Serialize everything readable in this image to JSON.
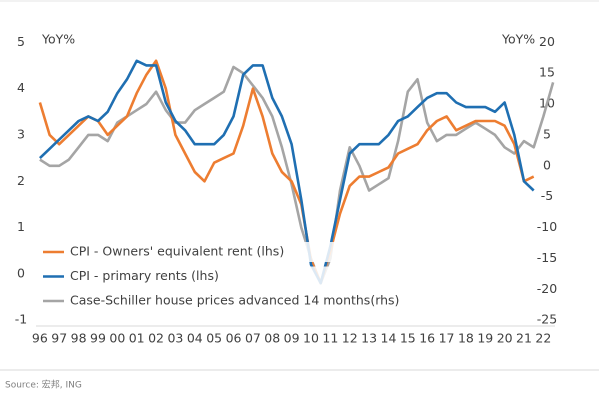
{
  "chart_data": {
    "type": "line",
    "y_axis_label": "YoY%",
    "y2_axis_label": "YoY%",
    "source": "Source: 宏邦, ING",
    "xlim": [
      1995.8,
      2022.6
    ],
    "xticks": [
      {
        "value": 1996,
        "label": "96"
      },
      {
        "value": 1997,
        "label": "97"
      },
      {
        "value": 1998,
        "label": "98"
      },
      {
        "value": 1999,
        "label": "99"
      },
      {
        "value": 2000,
        "label": "00"
      },
      {
        "value": 2001,
        "label": "01"
      },
      {
        "value": 2002,
        "label": "02"
      },
      {
        "value": 2003,
        "label": "03"
      },
      {
        "value": 2004,
        "label": "04"
      },
      {
        "value": 2005,
        "label": "05"
      },
      {
        "value": 2006,
        "label": "06"
      },
      {
        "value": 2007,
        "label": "07"
      },
      {
        "value": 2008,
        "label": "08"
      },
      {
        "value": 2009,
        "label": "09"
      },
      {
        "value": 2010,
        "label": "10"
      },
      {
        "value": 2011,
        "label": "11"
      },
      {
        "value": 2012,
        "label": "12"
      },
      {
        "value": 2013,
        "label": "13"
      },
      {
        "value": 2014,
        "label": "14"
      },
      {
        "value": 2015,
        "label": "15"
      },
      {
        "value": 2016,
        "label": "16"
      },
      {
        "value": 2017,
        "label": "17"
      },
      {
        "value": 2018,
        "label": "18"
      },
      {
        "value": 2019,
        "label": "19"
      },
      {
        "value": 2020,
        "label": "20"
      },
      {
        "value": 2021,
        "label": "21"
      },
      {
        "value": 2022,
        "label": "22"
      }
    ],
    "ylim": [
      -1.2,
      5.2
    ],
    "yticks": [
      -1,
      0,
      1,
      2,
      3,
      4,
      5
    ],
    "y2lim": [
      -26.5,
      21.5
    ],
    "y2ticks": [
      -25,
      -20,
      -15,
      -10,
      -5,
      0,
      5,
      10,
      15,
      20
    ],
    "series": [
      {
        "name": "CPI - Owners' equivalent rent (lhs)",
        "color": "#ed7d31",
        "x": [
          1996,
          1996.5,
          1997,
          1997.5,
          1998,
          1998.5,
          1999,
          1999.5,
          2000,
          2000.5,
          2001,
          2001.5,
          2002,
          2002.5,
          2003,
          2003.5,
          2004,
          2004.5,
          2005,
          2005.5,
          2006,
          2006.5,
          2007,
          2007.5,
          2008,
          2008.5,
          2009,
          2009.5,
          2010,
          2010.5,
          2011,
          2011.5,
          2012,
          2012.5,
          2013,
          2013.5,
          2014,
          2014.5,
          2015,
          2015.5,
          2016,
          2016.5,
          2017,
          2017.5,
          2018,
          2018.5,
          2019,
          2019.5,
          2020,
          2020.5,
          2021,
          2021.5
        ],
        "values": [
          3.7,
          3.0,
          2.8,
          3.0,
          3.2,
          3.4,
          3.3,
          3.0,
          3.2,
          3.4,
          3.9,
          4.3,
          4.6,
          4.0,
          3.0,
          2.6,
          2.2,
          2.0,
          2.4,
          2.5,
          2.6,
          3.2,
          4.0,
          3.4,
          2.6,
          2.2,
          2.0,
          1.5,
          0.3,
          -0.2,
          0.5,
          1.3,
          1.9,
          2.1,
          2.1,
          2.2,
          2.3,
          2.6,
          2.7,
          2.8,
          3.1,
          3.3,
          3.4,
          3.1,
          3.2,
          3.3,
          3.3,
          3.3,
          3.2,
          2.8,
          2.0,
          2.1
        ]
      },
      {
        "name": "CPI - primary rents (lhs)",
        "color": "#1f6fb2",
        "x": [
          1996,
          1996.5,
          1997,
          1997.5,
          1998,
          1998.5,
          1999,
          1999.5,
          2000,
          2000.5,
          2001,
          2001.5,
          2002,
          2002.5,
          2003,
          2003.5,
          2004,
          2004.5,
          2005,
          2005.5,
          2006,
          2006.5,
          2007,
          2007.5,
          2008,
          2008.5,
          2009,
          2009.5,
          2010,
          2010.5,
          2011,
          2011.5,
          2012,
          2012.5,
          2013,
          2013.5,
          2014,
          2014.5,
          2015,
          2015.5,
          2016,
          2016.5,
          2017,
          2017.5,
          2018,
          2018.5,
          2019,
          2019.5,
          2020,
          2020.5,
          2021,
          2021.5
        ],
        "values": [
          2.5,
          2.7,
          2.9,
          3.1,
          3.3,
          3.4,
          3.3,
          3.5,
          3.9,
          4.2,
          4.6,
          4.5,
          4.5,
          3.7,
          3.3,
          3.1,
          2.8,
          2.8,
          2.8,
          3.0,
          3.4,
          4.3,
          4.5,
          4.5,
          3.8,
          3.4,
          2.8,
          1.6,
          0.2,
          -0.2,
          0.6,
          1.6,
          2.6,
          2.8,
          2.8,
          2.8,
          3.0,
          3.3,
          3.4,
          3.6,
          3.8,
          3.9,
          3.9,
          3.7,
          3.6,
          3.6,
          3.6,
          3.5,
          3.7,
          3.0,
          2.0,
          1.8
        ]
      },
      {
        "name": "Case-Schiller house prices advanced 14 months(rhs)",
        "color": "#a5a5a5",
        "axis": "y2",
        "x": [
          1996,
          1996.5,
          1997,
          1997.5,
          1998,
          1998.5,
          1999,
          1999.5,
          2000,
          2000.5,
          2001,
          2001.5,
          2002,
          2002.5,
          2003,
          2003.5,
          2004,
          2004.5,
          2005,
          2005.5,
          2006,
          2006.5,
          2007,
          2007.5,
          2008,
          2008.5,
          2009,
          2009.5,
          2010,
          2010.5,
          2011,
          2011.5,
          2012,
          2012.5,
          2013,
          2013.5,
          2014,
          2014.5,
          2015,
          2015.5,
          2016,
          2016.5,
          2017,
          2017.5,
          2018,
          2018.5,
          2019,
          2019.5,
          2020,
          2020.5,
          2021,
          2021.5,
          2022,
          2022.5
        ],
        "values": [
          1,
          0,
          0,
          1,
          3,
          5,
          5,
          4,
          7,
          8,
          9,
          10,
          12,
          9,
          7,
          7,
          9,
          10,
          11,
          12,
          16,
          15,
          13,
          11,
          8,
          3,
          -3,
          -10,
          -15,
          -19,
          -15,
          -4,
          3,
          0,
          -4,
          -3,
          -2,
          4,
          12,
          14,
          7,
          4,
          5,
          5,
          6,
          7,
          6,
          5,
          3,
          2,
          4,
          3,
          8,
          13.5
        ]
      }
    ]
  }
}
